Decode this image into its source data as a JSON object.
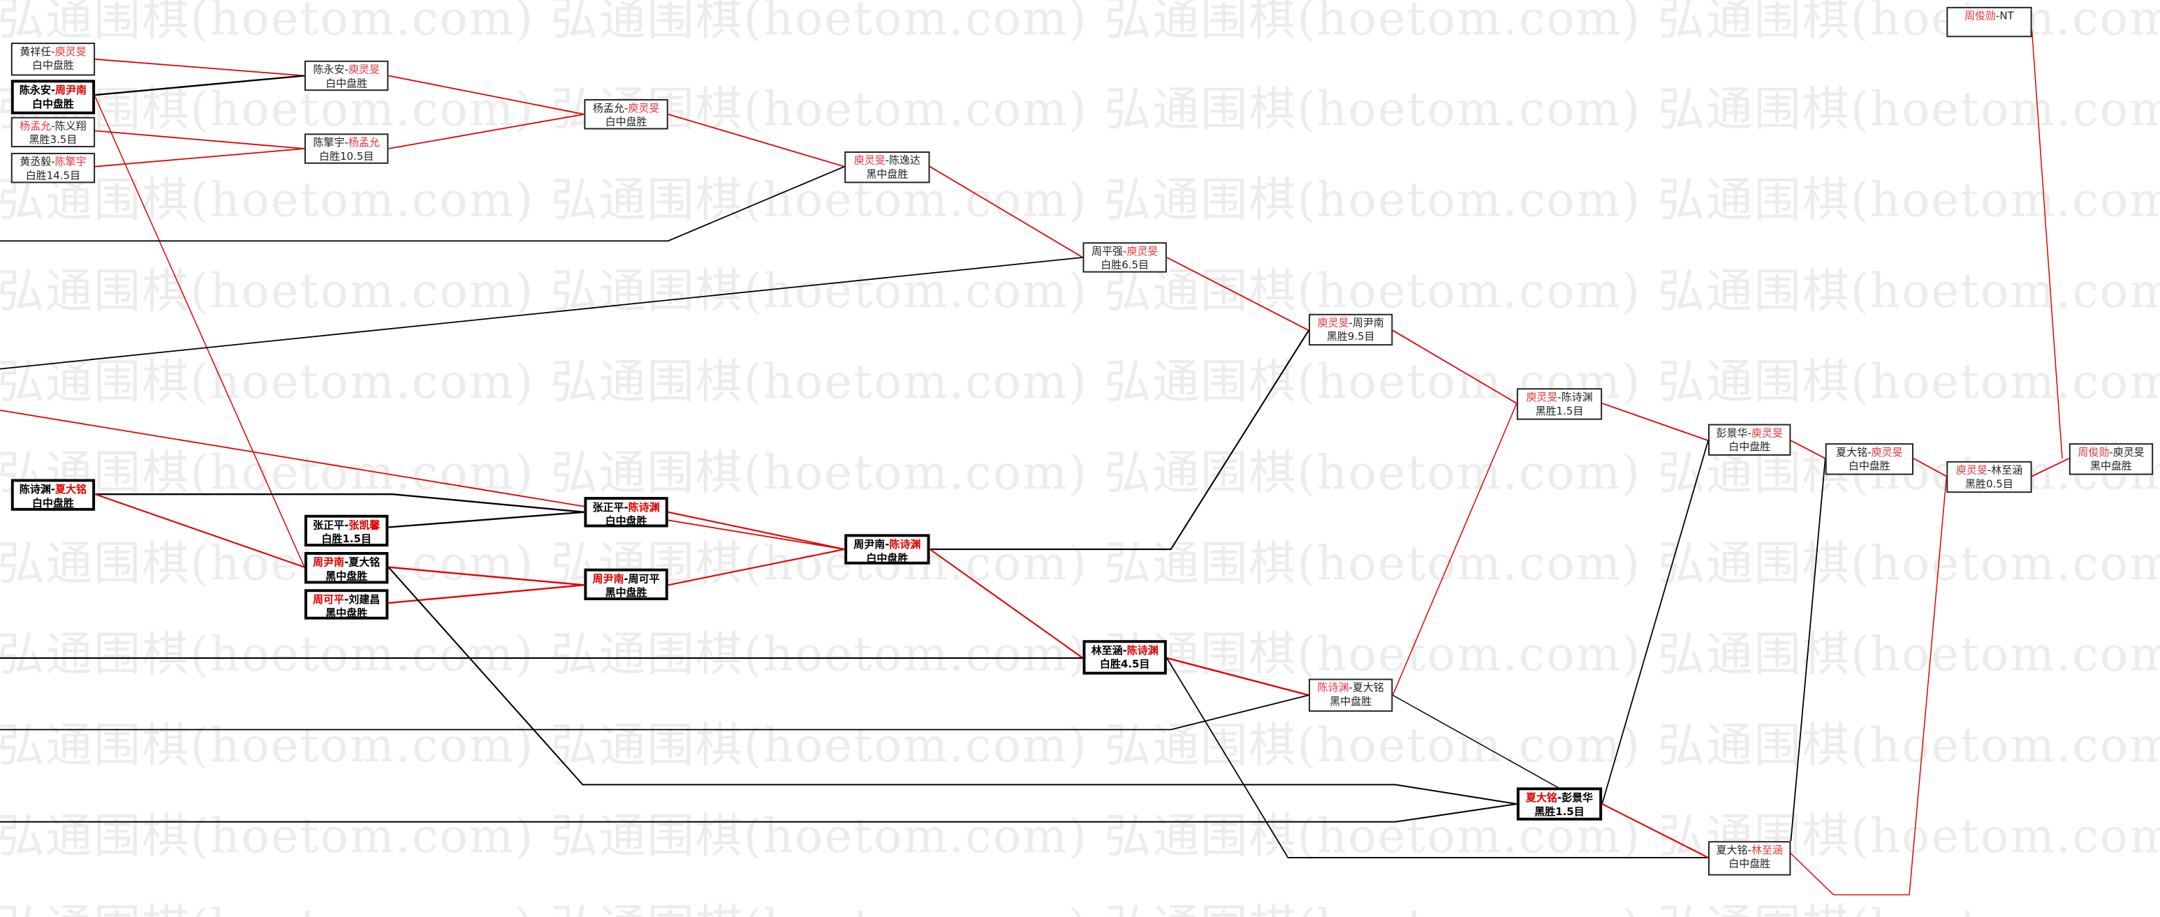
{
  "watermark": "弘通围棋(hoetom.com)",
  "colors": {
    "winner": "#e8323c",
    "winner_bold": "#e00000",
    "line_winner": "#e00000",
    "line_loser": "#000000"
  },
  "matches": [
    {
      "id": "A1",
      "black": "黄祥任",
      "white": "庾灵旻",
      "winner": "white",
      "result": "白中盘胜",
      "bold": false
    },
    {
      "id": "A2",
      "black": "陈永安",
      "white": "周尹南",
      "winner": "white",
      "result": "白中盘胜",
      "bold": true
    },
    {
      "id": "A3",
      "black": "杨孟允",
      "white": "陈义翔",
      "winner": "black",
      "result": "黑胜3.5目",
      "bold": false
    },
    {
      "id": "A4",
      "black": "黄丞毅",
      "white": "陈擎宇",
      "winner": "white",
      "result": "白胜14.5目",
      "bold": false
    },
    {
      "id": "B1",
      "black": "陈永安",
      "white": "庾灵旻",
      "winner": "white",
      "result": "白中盘胜",
      "bold": false
    },
    {
      "id": "B2",
      "black": "陈擎宇",
      "white": "杨孟允",
      "winner": "white",
      "result": "白胜10.5目",
      "bold": false
    },
    {
      "id": "C1",
      "black": "杨孟允",
      "white": "庾灵旻",
      "winner": "white",
      "result": "白中盘胜",
      "bold": false
    },
    {
      "id": "D1",
      "black": "庾灵旻",
      "white": "陈逸达",
      "winner": "black",
      "result": "黑中盘胜",
      "bold": false
    },
    {
      "id": "E1",
      "black": "周平强",
      "white": "庾灵旻",
      "winner": "white",
      "result": "白胜6.5目",
      "bold": false
    },
    {
      "id": "F1",
      "black": "庾灵旻",
      "white": "周尹南",
      "winner": "black",
      "result": "黑胜9.5目",
      "bold": false
    },
    {
      "id": "G1",
      "black": "庾灵旻",
      "white": "陈诗渊",
      "winner": "black",
      "result": "黑胜1.5目",
      "bold": false
    },
    {
      "id": "H1",
      "black": "彭景华",
      "white": "庾灵旻",
      "winner": "white",
      "result": "白中盘胜",
      "bold": false
    },
    {
      "id": "I1",
      "black": "夏大铭",
      "white": "庾灵旻",
      "winner": "white",
      "result": "白中盘胜",
      "bold": false
    },
    {
      "id": "J1",
      "black": "庾灵旻",
      "white": "林至涵",
      "winner": "black",
      "result": "黑胜0.5目",
      "bold": false
    },
    {
      "id": "K1",
      "black": "周俊勋",
      "white": "庾灵旻",
      "winner": "black",
      "result": "黑中盘胜",
      "bold": false
    },
    {
      "id": "L1",
      "black": "周俊勋",
      "white": "NT",
      "winner": "black",
      "result": "",
      "bold": false
    },
    {
      "id": "M1",
      "black": "陈诗渊",
      "white": "夏大铭",
      "winner": "white",
      "result": "白中盘胜",
      "bold": true
    },
    {
      "id": "N1",
      "black": "张正平",
      "white": "张凯馨",
      "winner": "white",
      "result": "白胜1.5目",
      "bold": true
    },
    {
      "id": "N2",
      "black": "周尹南",
      "white": "夏大铭",
      "winner": "black",
      "result": "黑中盘胜",
      "bold": true
    },
    {
      "id": "N3",
      "black": "周可平",
      "white": "刘建昌",
      "winner": "black",
      "result": "黑中盘胜",
      "bold": true
    },
    {
      "id": "O1",
      "black": "张正平",
      "white": "陈诗渊",
      "winner": "white",
      "result": "白中盘胜",
      "bold": true
    },
    {
      "id": "O2",
      "black": "周尹南",
      "white": "周可平",
      "winner": "black",
      "result": "黑中盘胜",
      "bold": true
    },
    {
      "id": "P1",
      "black": "周尹南",
      "white": "陈诗渊",
      "winner": "white",
      "result": "白中盘胜",
      "bold": true
    },
    {
      "id": "Q1",
      "black": "林至涵",
      "white": "陈诗渊",
      "winner": "white",
      "result": "白胜4.5目",
      "bold": true
    },
    {
      "id": "R1",
      "black": "陈诗渊",
      "white": "夏大铭",
      "winner": "black",
      "result": "黑中盘胜",
      "bold": false
    },
    {
      "id": "S1",
      "black": "夏大铭",
      "white": "彭景华",
      "winner": "black",
      "result": "黑胜1.5目",
      "bold": true
    },
    {
      "id": "T1",
      "black": "夏大铭",
      "white": "林至涵",
      "winner": "white",
      "result": "白中盘胜",
      "bold": false
    }
  ]
}
